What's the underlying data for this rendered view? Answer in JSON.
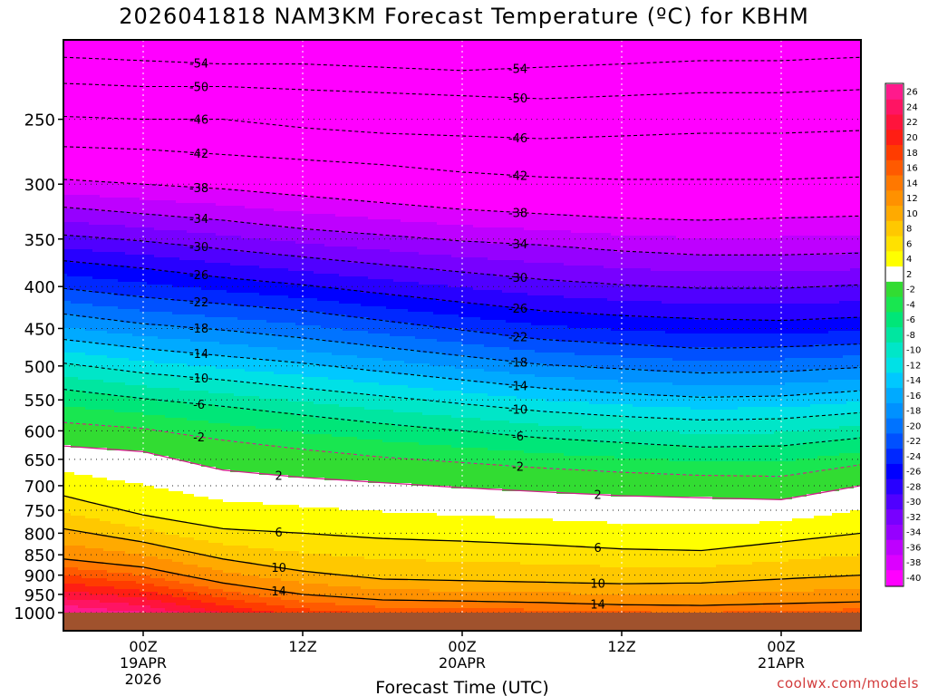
{
  "title": "2026041818 NAM3KM Forecast Temperature (ºC) for KBHM",
  "credit": "coolwx.com/models",
  "chart_data": {
    "type": "heatmap",
    "title": "2026041818 NAM3KM Forecast Temperature (ºC) for KBHM",
    "xlabel": "Forecast Time (UTC)",
    "ylabel": "",
    "x_range_hours": [
      0,
      60
    ],
    "x_ticks": [
      {
        "hour": 6,
        "lines": [
          "00Z",
          "19APR",
          "2026"
        ]
      },
      {
        "hour": 18,
        "lines": [
          "12Z"
        ]
      },
      {
        "hour": 30,
        "lines": [
          "00Z",
          "20APR"
        ]
      },
      {
        "hour": 42,
        "lines": [
          "12Z"
        ]
      },
      {
        "hour": 54,
        "lines": [
          "00Z",
          "21APR"
        ]
      }
    ],
    "y_scale": "log-pressure",
    "y_range_hpa": [
      1000,
      200
    ],
    "y_ticks": [
      250,
      300,
      350,
      400,
      450,
      500,
      550,
      600,
      650,
      700,
      750,
      800,
      850,
      900,
      950,
      1000
    ],
    "colorbar": {
      "levels": [
        26,
        24,
        22,
        20,
        18,
        16,
        14,
        12,
        10,
        8,
        6,
        4,
        2,
        -2,
        -4,
        -6,
        -8,
        -10,
        -12,
        -14,
        -16,
        -18,
        -20,
        -22,
        -24,
        -26,
        -28,
        -30,
        -32,
        -34,
        -36,
        -38,
        -40
      ],
      "colors": [
        "#ff1a8c",
        "#ff1463",
        "#ff143c",
        "#ff1e14",
        "#ff3c00",
        "#ff5a00",
        "#ff7800",
        "#ff9100",
        "#ffaa00",
        "#ffc800",
        "#ffe100",
        "#ffff00",
        "#ffffff",
        "#32dc32",
        "#19e650",
        "#00e678",
        "#00e6a0",
        "#00e6c8",
        "#00e1e6",
        "#00c8ff",
        "#00aaff",
        "#0091ff",
        "#0073ff",
        "#0050ff",
        "#0028ff",
        "#0000ff",
        "#2800ff",
        "#5000ff",
        "#7800ff",
        "#9600ff",
        "#be00ff",
        "#dc00ff",
        "#ff00ff"
      ]
    },
    "x_hours": [
      0,
      6,
      12,
      18,
      24,
      30,
      36,
      42,
      48,
      54,
      60
    ],
    "isotherms_hpa": {
      "-54": [
        210,
        212,
        214,
        214,
        216,
        218,
        216,
        214,
        212,
        212,
        210
      ],
      "-50": [
        226,
        228,
        228,
        230,
        232,
        234,
        236,
        234,
        232,
        232,
        230
      ],
      "-46": [
        248,
        250,
        250,
        256,
        260,
        262,
        264,
        262,
        260,
        260,
        258
      ],
      "-42": [
        270,
        272,
        276,
        280,
        284,
        290,
        294,
        296,
        296,
        296,
        294
      ],
      "-38": [
        296,
        300,
        304,
        310,
        316,
        322,
        326,
        330,
        332,
        330,
        328
      ],
      "-34": [
        320,
        326,
        332,
        340,
        346,
        352,
        356,
        362,
        366,
        366,
        364
      ],
      "-30": [
        346,
        352,
        360,
        368,
        376,
        384,
        392,
        398,
        402,
        402,
        398
      ],
      "-26": [
        372,
        380,
        390,
        398,
        408,
        418,
        428,
        434,
        438,
        440,
        436
      ],
      "-22": [
        402,
        412,
        420,
        428,
        440,
        452,
        464,
        470,
        476,
        474,
        470
      ],
      "-18": [
        432,
        444,
        452,
        462,
        474,
        486,
        498,
        504,
        510,
        508,
        502
      ],
      "-14": [
        464,
        476,
        486,
        496,
        508,
        520,
        532,
        540,
        546,
        544,
        536
      ],
      "-10": [
        496,
        510,
        520,
        532,
        544,
        556,
        568,
        576,
        582,
        580,
        570
      ],
      "-6": [
        534,
        548,
        560,
        574,
        588,
        600,
        612,
        620,
        628,
        626,
        612
      ],
      "-2": [
        586,
        596,
        616,
        632,
        646,
        656,
        666,
        674,
        680,
        682,
        660
      ],
      "2": [
        626,
        636,
        670,
        684,
        694,
        704,
        712,
        720,
        724,
        728,
        700
      ],
      "6": [
        720,
        760,
        790,
        800,
        812,
        818,
        826,
        836,
        840,
        820,
        800
      ],
      "10": [
        790,
        820,
        860,
        890,
        910,
        914,
        918,
        922,
        920,
        910,
        900
      ],
      "14": [
        860,
        880,
        920,
        950,
        965,
        968,
        972,
        978,
        980,
        975,
        970
      ]
    },
    "surface_hpa": 1000
  }
}
